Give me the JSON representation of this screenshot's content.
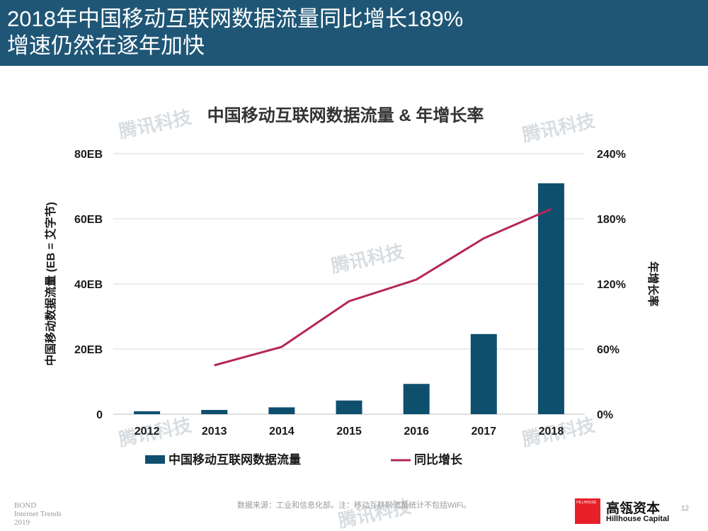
{
  "header": {
    "title_line1": "2018年中国移动互联网数据流量同比增长189%",
    "title_line2": "增速仍然在逐年加快"
  },
  "chart_data": {
    "type": "bar",
    "title": "中国移动互联网数据流量 & 年增长率",
    "categories": [
      "2012",
      "2013",
      "2014",
      "2015",
      "2016",
      "2017",
      "2018"
    ],
    "ylabel": "中国移动数据流量 (EB = 艾字节)",
    "y2label": "年增长率",
    "ylim": [
      0,
      80
    ],
    "y2lim": [
      0,
      240
    ],
    "yticks": [
      "0",
      "20EB",
      "40EB",
      "60EB",
      "80EB"
    ],
    "y2ticks": [
      "0%",
      "60%",
      "120%",
      "180%",
      "240%"
    ],
    "grid": true,
    "legend_position": "bottom",
    "series": [
      {
        "name": "中国移动互联网数据流量",
        "type": "bar",
        "axis": "left",
        "values": [
          0.9,
          1.3,
          2.1,
          4.2,
          9.3,
          24.6,
          70.9
        ]
      },
      {
        "name": "同比增长",
        "type": "line",
        "axis": "right",
        "values": [
          null,
          45,
          62,
          104,
          124,
          162,
          189
        ]
      }
    ],
    "colors": {
      "bar": "#0f4f6e",
      "line": "#b5265c",
      "grid": "#d9d9d9"
    }
  },
  "watermark": "腾讯科技",
  "footer": {
    "source": "数据来源：工业和信息化部。注：移动互联网流量统计不包括WiFi。",
    "bond": [
      "BOND",
      "Internet Trends",
      "2019"
    ],
    "logo_text": "HILLHOUSE",
    "brand_cn": "高瓴资本",
    "brand_en": "Hillhouse Capital",
    "page": "12"
  }
}
